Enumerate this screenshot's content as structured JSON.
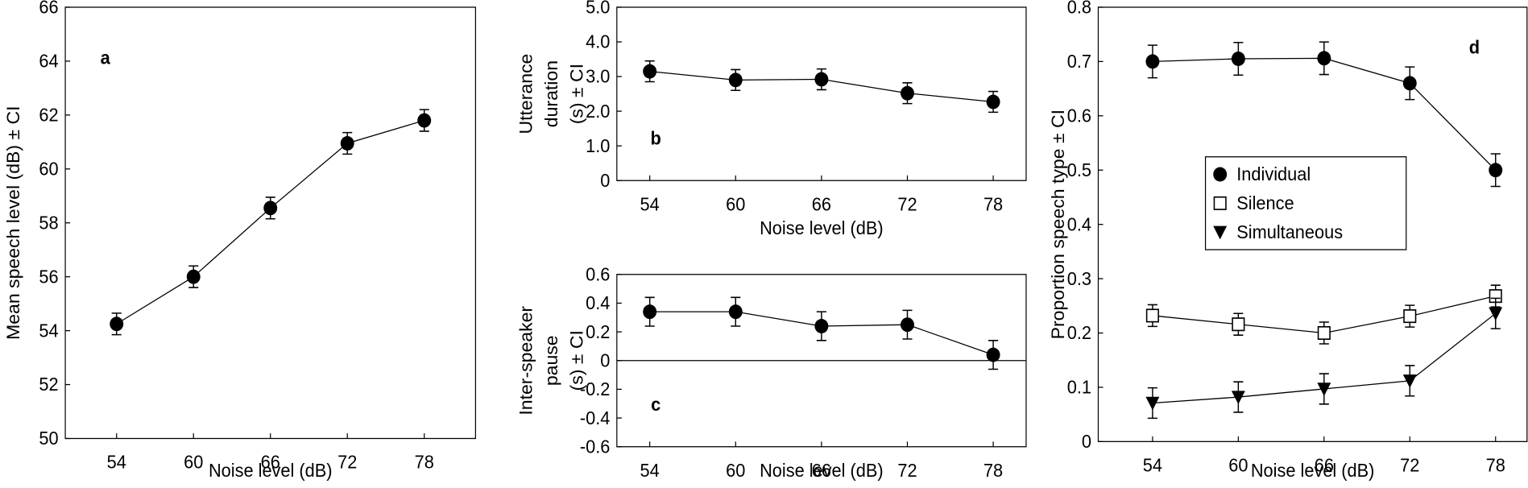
{
  "chart_data": [
    {
      "type": "line",
      "label": "a",
      "xlabel": "Noise level (dB)",
      "ylabel": [
        "Mean speech level (dB) ± CI"
      ],
      "x": [
        54,
        60,
        66,
        72,
        78
      ],
      "xlim": [
        50,
        82
      ],
      "xticks": [
        54,
        60,
        66,
        72,
        78
      ],
      "ylim": [
        50,
        66
      ],
      "yticks": [
        50,
        52,
        54,
        56,
        58,
        60,
        62,
        64,
        66
      ],
      "series": [
        {
          "color": "#000000",
          "marker": "circle",
          "values": [
            54.25,
            56.0,
            58.55,
            60.95,
            61.8
          ],
          "errors": [
            0.4,
            0.4,
            0.4,
            0.4,
            0.4
          ]
        }
      ]
    },
    {
      "type": "line",
      "label": "b",
      "xlabel": "Noise level (dB)",
      "ylabel": [
        "Utterance",
        "duration",
        "(s) ± CI"
      ],
      "x": [
        54,
        60,
        66,
        72,
        78
      ],
      "xlim": [
        51.7,
        80.3
      ],
      "xticks": [
        54,
        60,
        66,
        72,
        78
      ],
      "ylim": [
        0,
        5
      ],
      "yticks": [
        0,
        {
          "value": 1,
          "label": "1.0"
        },
        {
          "value": 2,
          "label": "2.0"
        },
        {
          "value": 3,
          "label": "3.0"
        },
        {
          "value": 4,
          "label": "4.0"
        },
        {
          "value": 5,
          "label": "5.0"
        }
      ],
      "series": [
        {
          "color": "#000000",
          "marker": "circle",
          "values": [
            3.15,
            2.9,
            2.92,
            2.52,
            2.27
          ],
          "errors": [
            0.3,
            0.3,
            0.3,
            0.3,
            0.3
          ]
        }
      ]
    },
    {
      "type": "line",
      "label": "c",
      "xlabel": "Noise level (dB)",
      "ylabel": [
        "Inter-speaker",
        "pause",
        "(s) ± CI"
      ],
      "x": [
        54,
        60,
        66,
        72,
        78
      ],
      "xlim": [
        51.7,
        80.3
      ],
      "xticks": [
        54,
        60,
        66,
        72,
        78
      ],
      "ylim": [
        -0.6,
        0.6
      ],
      "yticks": [
        -0.6,
        -0.4,
        -0.2,
        0,
        0.2,
        0.4,
        0.6
      ],
      "zero_line": true,
      "series": [
        {
          "color": "#000000",
          "marker": "circle",
          "values": [
            0.34,
            0.34,
            0.24,
            0.25,
            0.04
          ],
          "errors": [
            0.1,
            0.1,
            0.1,
            0.1,
            0.1
          ]
        }
      ]
    },
    {
      "type": "line",
      "label": "d",
      "xlabel": "Noise level (dB)",
      "ylabel": [
        "Proportion speech type ± CI"
      ],
      "x": [
        54,
        60,
        66,
        72,
        78
      ],
      "xlim": [
        50.2,
        80.2
      ],
      "xticks": [
        54,
        60,
        66,
        72,
        78
      ],
      "ylim": [
        0,
        0.8
      ],
      "yticks": [
        0,
        0.1,
        0.2,
        0.3,
        0.4,
        0.5,
        0.6,
        0.7,
        0.8
      ],
      "legend": "center-right",
      "series": [
        {
          "name": "Individual",
          "color": "#000000",
          "marker": "circle",
          "values": [
            0.7,
            0.705,
            0.706,
            0.66,
            0.5
          ],
          "errors": [
            0.03,
            0.03,
            0.03,
            0.03,
            0.03
          ]
        },
        {
          "name": "Silence",
          "color": "#000000",
          "marker": "square",
          "values": [
            0.232,
            0.216,
            0.2,
            0.231,
            0.268
          ],
          "errors": [
            0.02,
            0.02,
            0.02,
            0.02,
            0.02
          ]
        },
        {
          "name": "Simultaneous",
          "color": "#000000",
          "marker": "triangle-down",
          "values": [
            0.071,
            0.082,
            0.097,
            0.112,
            0.236
          ],
          "errors": [
            0.028,
            0.028,
            0.028,
            0.028,
            0.028
          ]
        }
      ]
    }
  ]
}
